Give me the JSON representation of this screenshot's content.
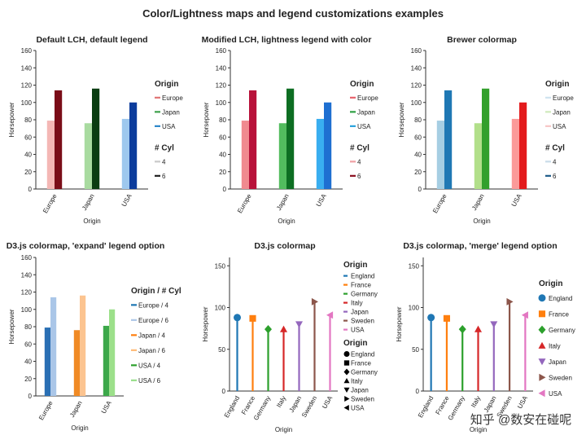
{
  "page": {
    "title": "Color/Lightness maps and legend customizations examples",
    "watermark": "知乎 @数安在碰呢"
  },
  "chart_data": [
    {
      "type": "bar",
      "title": "Default LCH, default legend",
      "xlabel": "Origin",
      "ylabel": "Horsepower",
      "ylim": [
        0,
        160
      ],
      "yticks": [
        0,
        20,
        40,
        60,
        80,
        100,
        120,
        140,
        160
      ],
      "categories": [
        "Europe",
        "Japan",
        "USA"
      ],
      "series": [
        {
          "name": "4",
          "values": [
            79,
            76,
            81
          ],
          "colors": [
            "#f4b7b5",
            "#a9dba0",
            "#9ec8ee"
          ]
        },
        {
          "name": "6",
          "values": [
            114,
            116,
            100
          ],
          "colors": [
            "#7a0d18",
            "#0b3d12",
            "#0c3c9c"
          ]
        }
      ],
      "legends": [
        {
          "title": "Origin",
          "items": [
            {
              "label": "Europe",
              "color": "#e07575"
            },
            {
              "label": "Japan",
              "color": "#3da04a"
            },
            {
              "label": "USA",
              "color": "#2a86c9"
            }
          ]
        },
        {
          "title": "# Cyl",
          "items": [
            {
              "label": "4",
              "color": "#c9c9c9"
            },
            {
              "label": "6",
              "color": "#222222"
            }
          ]
        }
      ]
    },
    {
      "type": "bar",
      "title": "Modified LCH, lightness legend with color",
      "xlabel": "Origin",
      "ylabel": "Horsepower",
      "ylim": [
        0,
        160
      ],
      "yticks": [
        0,
        20,
        40,
        60,
        80,
        100,
        120,
        140,
        160
      ],
      "categories": [
        "Europe",
        "Japan",
        "USA"
      ],
      "series": [
        {
          "name": "4",
          "values": [
            79,
            76,
            81
          ],
          "colors": [
            "#f08a8f",
            "#52bc5e",
            "#39aef0"
          ]
        },
        {
          "name": "6",
          "values": [
            114,
            116,
            100
          ],
          "colors": [
            "#b8123a",
            "#0d6e22",
            "#1e6fd1"
          ]
        }
      ],
      "legends": [
        {
          "title": "Origin",
          "items": [
            {
              "label": "Europe",
              "color": "#e8626c"
            },
            {
              "label": "Japan",
              "color": "#2ea043"
            },
            {
              "label": "USA",
              "color": "#28a2dc"
            }
          ]
        },
        {
          "title": "# Cyl",
          "items": [
            {
              "label": "4",
              "color": "#f0a0a4"
            },
            {
              "label": "6",
              "color": "#8b0e1e"
            }
          ]
        }
      ]
    },
    {
      "type": "bar",
      "title": "Brewer colormap",
      "xlabel": "Origin",
      "ylabel": "Horsepower",
      "ylim": [
        0,
        160
      ],
      "yticks": [
        0,
        20,
        40,
        60,
        80,
        100,
        120,
        140,
        160
      ],
      "categories": [
        "Europe",
        "Japan",
        "USA"
      ],
      "series": [
        {
          "name": "4",
          "values": [
            79,
            76,
            81
          ],
          "colors": [
            "#a6cee3",
            "#b2df8a",
            "#fb9a99"
          ]
        },
        {
          "name": "6",
          "values": [
            114,
            116,
            100
          ],
          "colors": [
            "#1f78b4",
            "#33a02c",
            "#e31a1c"
          ]
        }
      ],
      "legends": [
        {
          "title": "Origin",
          "items": [
            {
              "label": "Europe",
              "color": "#cfe3f0"
            },
            {
              "label": "Japan",
              "color": "#cfeabc"
            },
            {
              "label": "USA",
              "color": "#f7c6c6"
            }
          ]
        },
        {
          "title": "# Cyl",
          "items": [
            {
              "label": "4",
              "color": "#c9dce9"
            },
            {
              "label": "6",
              "color": "#1f5d8a"
            }
          ]
        }
      ]
    },
    {
      "type": "bar",
      "title": "D3.js colormap, 'expand' legend option",
      "xlabel": "Origin",
      "ylabel": "Horsepower",
      "ylim": [
        0,
        160
      ],
      "yticks": [
        0,
        20,
        40,
        60,
        80,
        100,
        120,
        140,
        160
      ],
      "categories": [
        "Europe",
        "Japan",
        "USA"
      ],
      "series": [
        {
          "name": "4",
          "values": [
            79,
            76,
            81
          ],
          "colors": [
            "#2a6fb4",
            "#f08a24",
            "#3ca84a"
          ]
        },
        {
          "name": "6",
          "values": [
            114,
            116,
            100
          ],
          "colors": [
            "#aac6e8",
            "#fcc490",
            "#9ce08a"
          ]
        }
      ],
      "legends": [
        {
          "title": "Origin / # Cyl",
          "items": [
            {
              "label": "Europe / 4",
              "color": "#1f77b4"
            },
            {
              "label": "Europe / 6",
              "color": "#aec7e8"
            },
            {
              "label": "Japan / 4",
              "color": "#ff7f0e"
            },
            {
              "label": "Japan / 6",
              "color": "#ffbb78"
            },
            {
              "label": "USA / 4",
              "color": "#2ca02c"
            },
            {
              "label": "USA / 6",
              "color": "#98df8a"
            }
          ]
        }
      ]
    },
    {
      "type": "scatter",
      "title": "D3.js colormap",
      "xlabel": "Origin",
      "ylabel": "Horsepower",
      "ylim": [
        0,
        160
      ],
      "yticks": [
        0,
        50,
        100,
        150
      ],
      "categories": [
        "England",
        "France",
        "Germany",
        "Italy",
        "Japan",
        "Sweden",
        "USA"
      ],
      "values": [
        88,
        87,
        74,
        74,
        80,
        107,
        91
      ],
      "colors": [
        "#1f77b4",
        "#ff7f0e",
        "#2ca02c",
        "#d62728",
        "#9467bd",
        "#8c564b",
        "#e377c2"
      ],
      "markers": [
        "circle",
        "square",
        "diamond",
        "triangle-up",
        "triangle-down",
        "triangle-right",
        "triangle-left"
      ],
      "legends": [
        {
          "title": "Origin",
          "style": "line",
          "items": [
            {
              "label": "England",
              "color": "#1f77b4"
            },
            {
              "label": "France",
              "color": "#ff7f0e"
            },
            {
              "label": "Germany",
              "color": "#2ca02c"
            },
            {
              "label": "Italy",
              "color": "#d62728"
            },
            {
              "label": "Japan",
              "color": "#9467bd"
            },
            {
              "label": "Sweden",
              "color": "#8c564b"
            },
            {
              "label": "USA",
              "color": "#e377c2"
            }
          ]
        },
        {
          "title": "Origin",
          "style": "marker",
          "items": [
            {
              "label": "England",
              "color": "#000000",
              "marker": "circle"
            },
            {
              "label": "France",
              "color": "#000000",
              "marker": "square"
            },
            {
              "label": "Germany",
              "color": "#000000",
              "marker": "diamond"
            },
            {
              "label": "Italy",
              "color": "#000000",
              "marker": "triangle-up"
            },
            {
              "label": "Japan",
              "color": "#000000",
              "marker": "triangle-down"
            },
            {
              "label": "Sweden",
              "color": "#000000",
              "marker": "triangle-right"
            },
            {
              "label": "USA",
              "color": "#000000",
              "marker": "triangle-left"
            }
          ]
        }
      ]
    },
    {
      "type": "scatter",
      "title": "D3.js colormap, 'merge' legend option",
      "xlabel": "Origin",
      "ylabel": "Horsepower",
      "ylim": [
        0,
        160
      ],
      "yticks": [
        0,
        50,
        100,
        150
      ],
      "categories": [
        "England",
        "France",
        "Germany",
        "Italy",
        "Japan",
        "Sweden",
        "USA"
      ],
      "values": [
        88,
        87,
        74,
        74,
        80,
        107,
        91
      ],
      "colors": [
        "#1f77b4",
        "#ff7f0e",
        "#2ca02c",
        "#d62728",
        "#9467bd",
        "#8c564b",
        "#e377c2"
      ],
      "markers": [
        "circle",
        "square",
        "diamond",
        "triangle-up",
        "triangle-down",
        "triangle-right",
        "triangle-left"
      ],
      "legends": [
        {
          "title": "Origin",
          "style": "merged",
          "items": [
            {
              "label": "England",
              "color": "#1f77b4",
              "marker": "circle"
            },
            {
              "label": "France",
              "color": "#ff7f0e",
              "marker": "square"
            },
            {
              "label": "Germany",
              "color": "#2ca02c",
              "marker": "diamond"
            },
            {
              "label": "Italy",
              "color": "#d62728",
              "marker": "triangle-up"
            },
            {
              "label": "Japan",
              "color": "#9467bd",
              "marker": "triangle-down"
            },
            {
              "label": "Sweden",
              "color": "#8c564b",
              "marker": "triangle-right"
            },
            {
              "label": "USA",
              "color": "#e377c2",
              "marker": "triangle-left"
            }
          ]
        }
      ]
    }
  ]
}
